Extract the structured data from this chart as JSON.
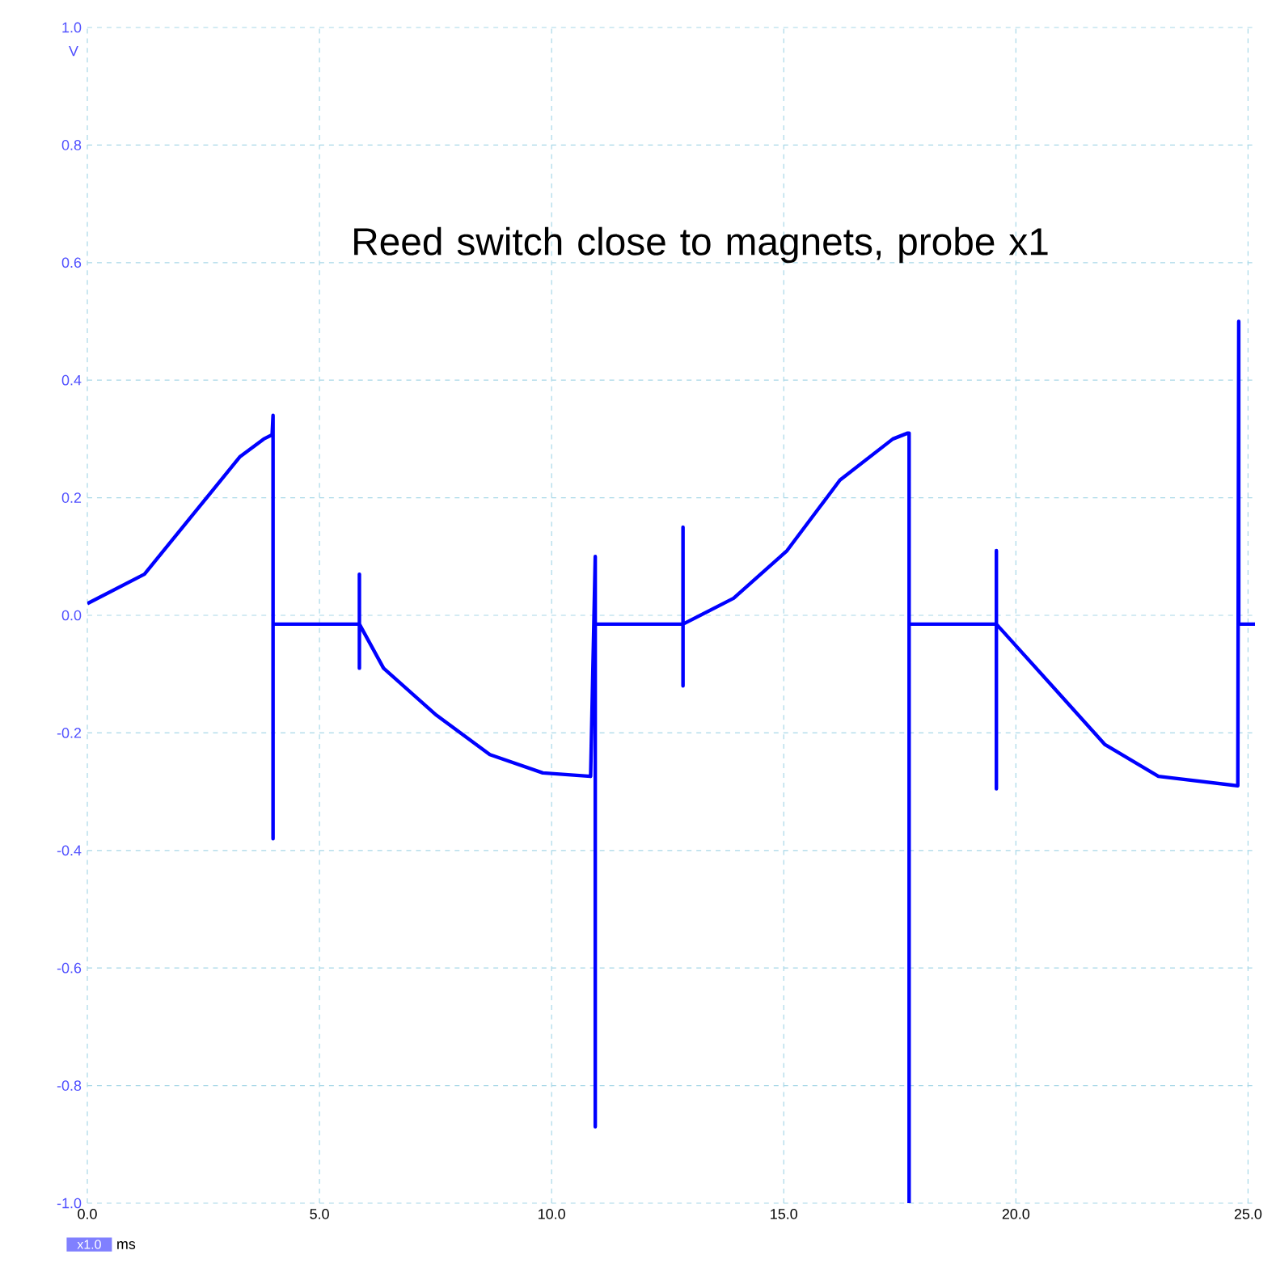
{
  "chart_data": {
    "type": "line",
    "xlabel": "ms",
    "ylabel": "V",
    "annotations": [
      "Reed switch close to magnets, probe x1",
      "x1.0"
    ],
    "xlim": [
      0,
      25.15
    ],
    "ylim": [
      -1,
      1
    ],
    "xticks": [
      {
        "value": 0,
        "label": "0.0"
      },
      {
        "value": 5,
        "label": "5.0"
      },
      {
        "value": 10,
        "label": "10.0"
      },
      {
        "value": 15,
        "label": "15.0"
      },
      {
        "value": 20,
        "label": "20.0"
      },
      {
        "value": 25,
        "label": "25.0"
      }
    ],
    "yticks": [
      {
        "value": -1,
        "label": "-1.0"
      },
      {
        "value": -0.8,
        "label": "-0.8"
      },
      {
        "value": -0.6,
        "label": "-0.6"
      },
      {
        "value": -0.4,
        "label": "-0.4"
      },
      {
        "value": -0.2,
        "label": "-0.2"
      },
      {
        "value": 0,
        "label": "0.0"
      },
      {
        "value": 0.2,
        "label": "0.2"
      },
      {
        "value": 0.4,
        "label": "0.4"
      },
      {
        "value": 0.6,
        "label": "0.6"
      },
      {
        "value": 0.8,
        "label": "0.8"
      },
      {
        "value": 1,
        "label": "1.0"
      }
    ],
    "grid": true,
    "line_style": "solid",
    "series": [
      {
        "color": "#0000ff",
        "x": [
          0,
          1.23,
          2.26,
          3.29,
          3.8,
          3.98,
          4.0,
          4.0,
          4.0,
          5.86,
          5.86,
          5.86,
          5.86,
          6.38,
          7.52,
          8.67,
          9.81,
          10.84,
          10.94,
          10.94,
          10.94,
          12.83,
          12.83,
          12.83,
          12.83,
          13.92,
          15.07,
          16.21,
          17.35,
          17.67,
          17.7,
          17.7,
          17.7,
          19.58,
          19.58,
          19.58,
          19.58,
          20.78,
          21.92,
          23.07,
          24.78,
          24.8,
          24.8,
          25.15
        ],
        "values": [
          0.02,
          0.07,
          0.17,
          0.27,
          0.3,
          0.307,
          0.34,
          -0.38,
          -0.015,
          -0.015,
          0.07,
          -0.09,
          -0.015,
          -0.09,
          -0.17,
          -0.237,
          -0.268,
          -0.274,
          0.1,
          -0.87,
          -0.015,
          -0.015,
          0.15,
          -0.12,
          -0.015,
          0.029,
          0.11,
          0.23,
          0.3,
          0.31,
          0.31,
          -1.0,
          -0.015,
          -0.015,
          0.11,
          -0.295,
          -0.015,
          -0.12,
          -0.22,
          -0.274,
          -0.29,
          0.5,
          -0.015,
          -0.015
        ]
      }
    ]
  }
}
